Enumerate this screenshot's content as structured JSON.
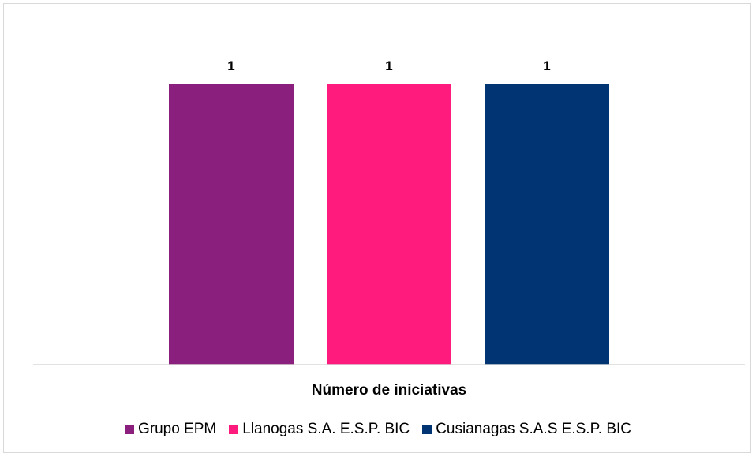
{
  "chart_data": {
    "type": "bar",
    "xlabel": "Número de iniciativas",
    "ylim": [
      0,
      1.2
    ],
    "grid": false,
    "legend_position": "bottom",
    "series": [
      {
        "name": "Grupo EPM",
        "values": [
          1
        ],
        "color": "#8B1F7E"
      },
      {
        "name": "Llanogas S.A. E.S.P. BIC",
        "values": [
          1
        ],
        "color": "#FF1A7D"
      },
      {
        "name": "Cusianagas S.A.S E.S.P. BIC",
        "values": [
          1
        ],
        "color": "#003473"
      }
    ],
    "data_labels": [
      "1",
      "1",
      "1"
    ]
  }
}
